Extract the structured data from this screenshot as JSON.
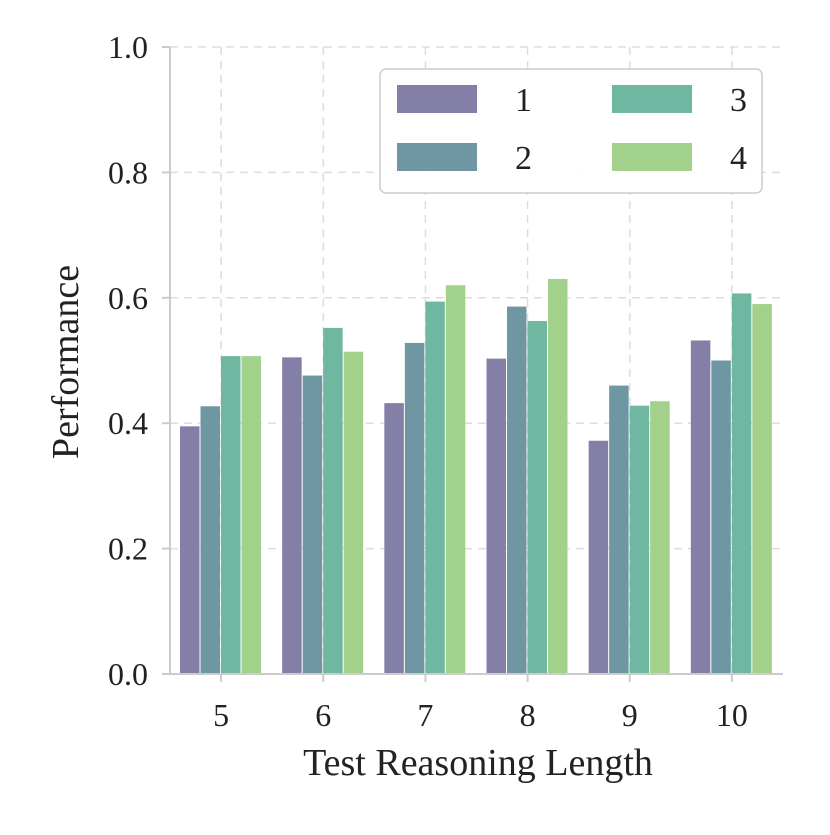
{
  "chart_data": {
    "type": "bar",
    "title": "",
    "xlabel": "Test Reasoning Length",
    "ylabel": "Performance",
    "categories": [
      "5",
      "6",
      "7",
      "8",
      "9",
      "10"
    ],
    "ylim": [
      0,
      1.0
    ],
    "yticks": [
      "0.0",
      "0.2",
      "0.4",
      "0.6",
      "0.8",
      "1.0"
    ],
    "grid": true,
    "legend": {
      "placement": "top-right",
      "columns": 2
    },
    "series": [
      {
        "name": "1",
        "color": "#837fa6",
        "values": [
          0.395,
          0.505,
          0.432,
          0.503,
          0.372,
          0.532
        ]
      },
      {
        "name": "2",
        "color": "#6f97a3",
        "values": [
          0.427,
          0.476,
          0.528,
          0.586,
          0.46,
          0.5
        ]
      },
      {
        "name": "3",
        "color": "#6fb7a1",
        "values": [
          0.507,
          0.552,
          0.594,
          0.563,
          0.428,
          0.607
        ]
      },
      {
        "name": "4",
        "color": "#a2d18b",
        "values": [
          0.507,
          0.514,
          0.62,
          0.63,
          0.435,
          0.59
        ]
      }
    ]
  }
}
